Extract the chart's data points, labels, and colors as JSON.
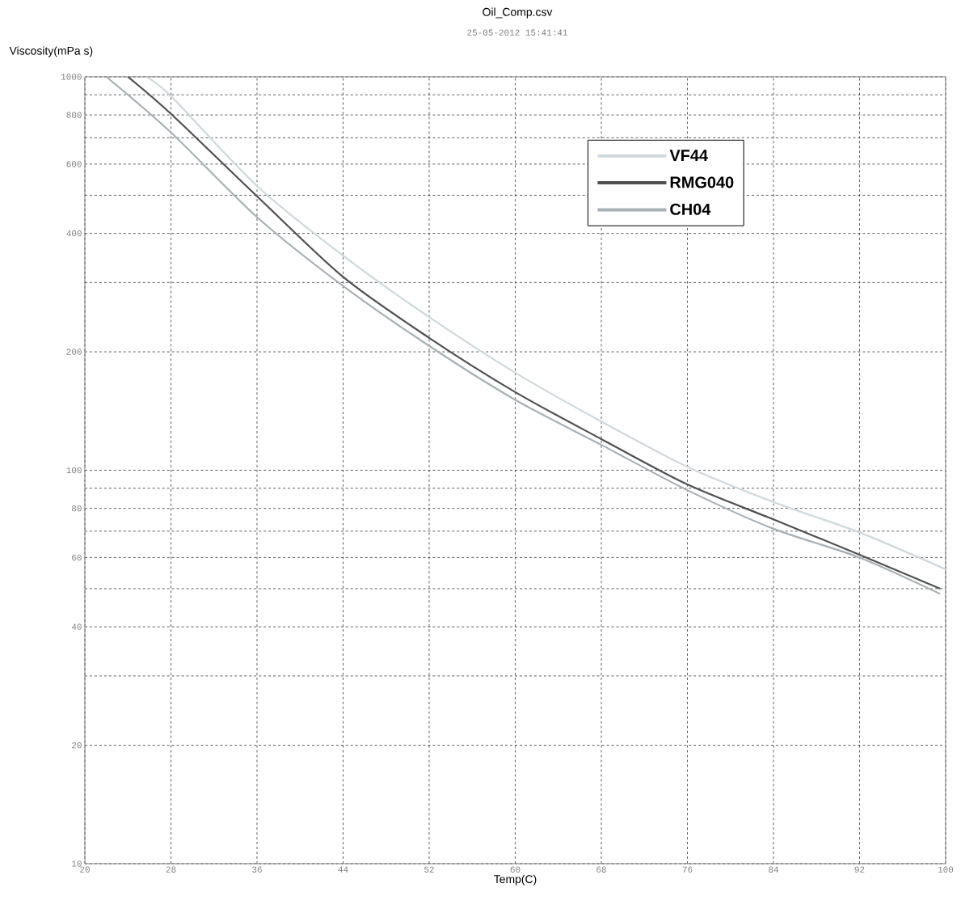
{
  "chart_data": {
    "type": "line",
    "title": "Oil_Comp.csv",
    "subtitle": "25-05-2012 15:41:41",
    "xlabel": "Temp(C)",
    "ylabel": "Viscosity(mPa s)",
    "log": "y",
    "grid": true,
    "legend": "top right",
    "marker": "none",
    "line_style": "solid",
    "xlim": [
      20,
      100
    ],
    "xticks": [
      20,
      28,
      36,
      44,
      52,
      60,
      68,
      76,
      84,
      92,
      100
    ],
    "ylim": [
      10,
      1000
    ],
    "yticks": [
      10,
      20,
      {
        "value": 30,
        "label": null
      },
      40,
      {
        "value": 50,
        "label": null
      },
      60,
      {
        "value": 70,
        "label": null
      },
      80,
      {
        "value": 90,
        "label": null
      },
      100,
      200,
      {
        "value": 300,
        "label": null
      },
      400,
      {
        "value": 500,
        "label": null
      },
      600,
      {
        "value": 700,
        "label": null
      },
      800,
      {
        "value": 900,
        "label": null
      },
      1000
    ],
    "series": [
      {
        "name": "VF44",
        "color": "#d0d8dc",
        "x": [
          25.7,
          28,
          36,
          44,
          52,
          60,
          68,
          76,
          84,
          92,
          100
        ],
        "values": [
          1000,
          893,
          528,
          351,
          245,
          177,
          133,
          102,
          83,
          69.5,
          56
        ]
      },
      {
        "name": "RMG040",
        "color": "#505050",
        "x": [
          24,
          28,
          36,
          44,
          52,
          60,
          68,
          76,
          84,
          92,
          99.5
        ],
        "values": [
          1000,
          805,
          497,
          310,
          217,
          158,
          120,
          92,
          75,
          61,
          50
        ]
      },
      {
        "name": "CH04",
        "color": "#a8b0b4",
        "x": [
          22,
          28,
          36,
          44,
          52,
          60,
          68,
          76,
          84,
          92,
          99.5
        ],
        "values": [
          1000,
          722,
          440,
          294,
          207,
          151,
          116,
          89,
          71,
          60,
          48.5
        ]
      }
    ]
  }
}
